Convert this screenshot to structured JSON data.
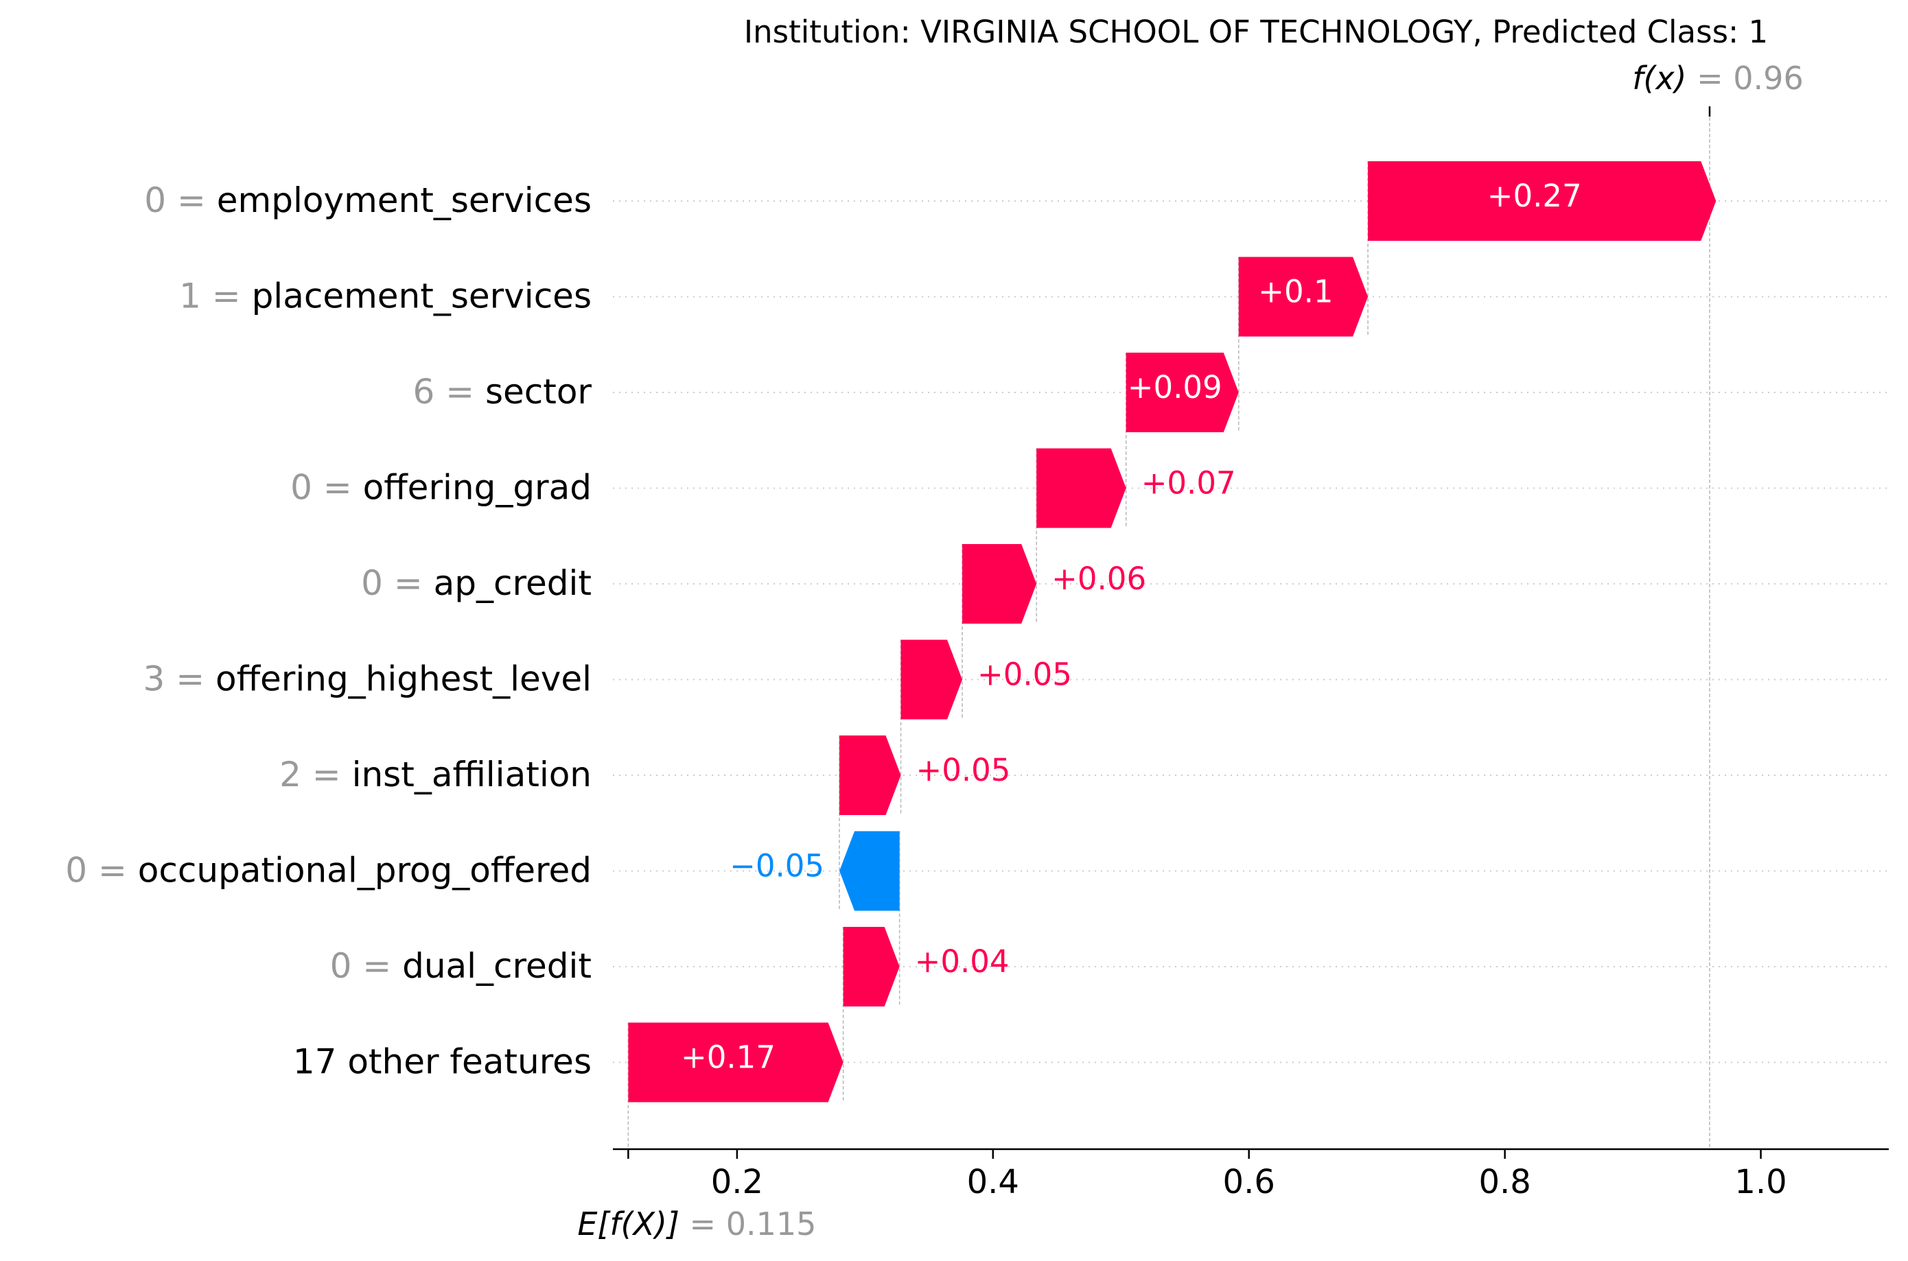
{
  "chart_data": {
    "type": "waterfall",
    "title": "Institution: VIRGINIA SCHOOL OF TECHNOLOGY, Predicted Class: 1",
    "fx_label": "f(x)",
    "fx_value": "= 0.96",
    "fx": 0.96,
    "base_label": "E[f(X)]",
    "base_value_text": "= 0.115",
    "base_value": 0.115,
    "xlim": [
      0.103,
      1.1
    ],
    "x_ticks": [
      0.2,
      0.4,
      0.6,
      0.8,
      1.0
    ],
    "x_tick_labels": [
      "0.2",
      "0.4",
      "0.6",
      "0.8",
      "1.0"
    ],
    "grid": "dotted horizontal guides",
    "features": [
      {
        "value": "0 =",
        "name": "employment_services",
        "contribution": 0.272,
        "label": "+0.27"
      },
      {
        "value": "1 =",
        "name": "placement_services",
        "contribution": 0.101,
        "label": "+0.1"
      },
      {
        "value": "6 =",
        "name": "sector",
        "contribution": 0.088,
        "label": "+0.09"
      },
      {
        "value": "0 =",
        "name": "offering_grad",
        "contribution": 0.07,
        "label": "+0.07"
      },
      {
        "value": "0 =",
        "name": "ap_credit",
        "contribution": 0.058,
        "label": "+0.06"
      },
      {
        "value": "3 =",
        "name": "offering_highest_level",
        "contribution": 0.048,
        "label": "+0.05"
      },
      {
        "value": "2 =",
        "name": "inst_affiliation",
        "contribution": 0.048,
        "label": "+0.05"
      },
      {
        "value": "0 =",
        "name": "occupational_prog_offered",
        "contribution": -0.047,
        "label": "−0.05"
      },
      {
        "value": "0 =",
        "name": "dual_credit",
        "contribution": 0.044,
        "label": "+0.04"
      },
      {
        "value": "",
        "name": "17 other features",
        "contribution": 0.168,
        "label": "+0.17"
      }
    ],
    "colors": {
      "positive": "#ff0051",
      "negative": "#008bfb",
      "gray": "#999999",
      "text": "#000000"
    }
  }
}
